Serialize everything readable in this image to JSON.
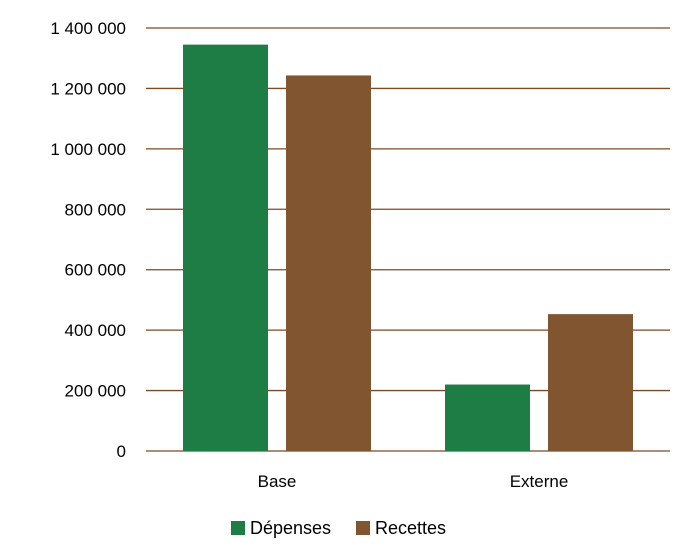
{
  "chart_data": {
    "type": "bar",
    "title": "",
    "xlabel": "",
    "ylabel": "",
    "categories": [
      "Base",
      "Externe"
    ],
    "series": [
      {
        "name": "Dépenses",
        "color": "#1e7d45",
        "values": [
          1345000,
          220000
        ]
      },
      {
        "name": "Recettes",
        "color": "#815530",
        "values": [
          1243000,
          453000
        ]
      }
    ],
    "ylim": [
      0,
      1400000
    ],
    "yticks": [
      0,
      200000,
      400000,
      600000,
      800000,
      1000000,
      1200000,
      1400000
    ],
    "ytick_labels": [
      "0",
      "200 000",
      "400 000",
      "600 000",
      "800 000",
      "1 000 000",
      "1 200 000",
      "1 400 000"
    ],
    "grid": true,
    "grid_color": "#7b4a24",
    "legend_position": "bottom"
  }
}
